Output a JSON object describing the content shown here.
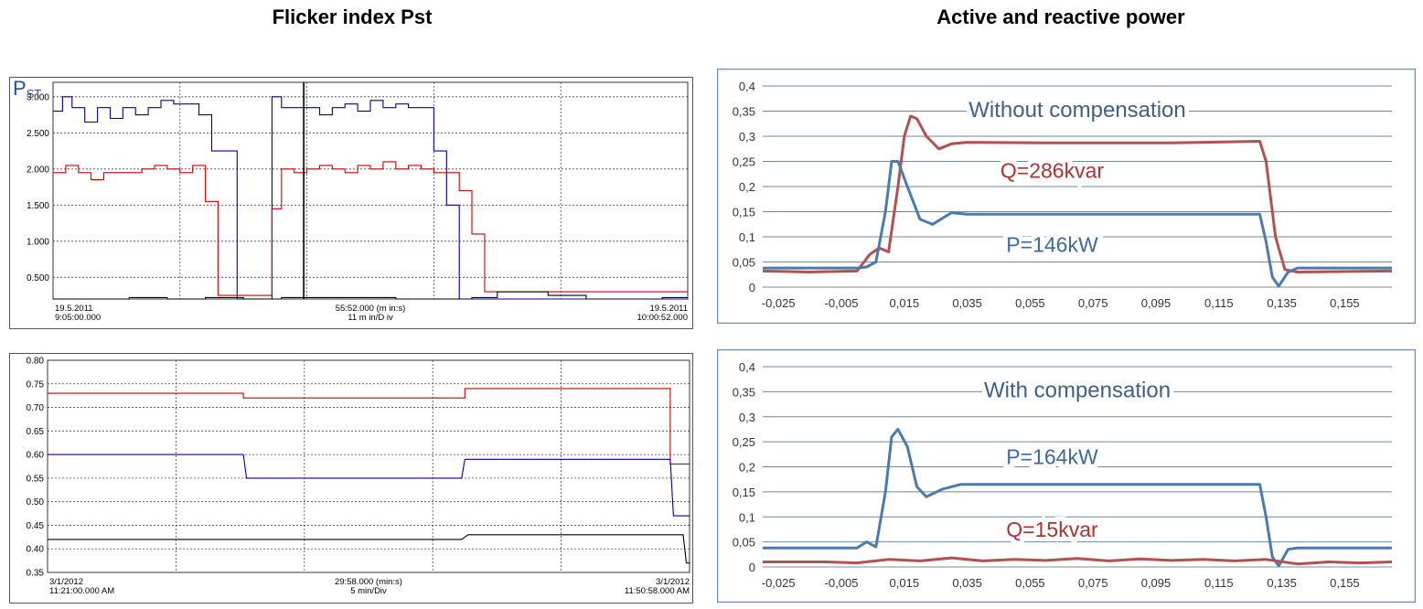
{
  "page": {
    "left_title": "Flicker index Pst",
    "right_title": "Active and reactive power"
  },
  "chart_data": [
    {
      "id": "pst-2011",
      "type": "line",
      "title": "",
      "ylabel": "P",
      "ylabel_sub": "ST",
      "ylim": [
        0.2,
        3.2
      ],
      "yticks": [
        0.5,
        1.0,
        1.5,
        2.0,
        2.5,
        3.0
      ],
      "ytick_labels": [
        "0.500",
        "1.000",
        "1.500",
        "2.000",
        "2.500",
        "3.000"
      ],
      "xlim": [
        0,
        100
      ],
      "x_labels": {
        "left": [
          "19.5.2011",
          "9:05:00.000"
        ],
        "center": [
          "55:52.000 (m in:s)",
          "11 m in/D iv"
        ],
        "right": [
          "19.5.2011",
          "10:00:52.000"
        ]
      },
      "grid": true,
      "colors": [
        "#0000aa",
        "#cc0000",
        "#000000"
      ],
      "series": [
        {
          "color": "#0000aa",
          "x": [
            0,
            1.5,
            1.5,
            3,
            3,
            5,
            5,
            7,
            7,
            9,
            9,
            11,
            11,
            13,
            13,
            15,
            15,
            17,
            17,
            19,
            19,
            21,
            21,
            23,
            23,
            25,
            25,
            27,
            27,
            29,
            29,
            31,
            31,
            33,
            33,
            34.5,
            34.5,
            36,
            36,
            38,
            38,
            40,
            40,
            42,
            42,
            44,
            44,
            46,
            46,
            48,
            48,
            50,
            50,
            52,
            52,
            54,
            54,
            56,
            56,
            58,
            58,
            60,
            60,
            62,
            62,
            64,
            64,
            66,
            66,
            68,
            68,
            70,
            70,
            72,
            72,
            74,
            74,
            76,
            76,
            78,
            78,
            80,
            80,
            82,
            82,
            84,
            84,
            86,
            86,
            88,
            88,
            90,
            90,
            92,
            92,
            94,
            94,
            96,
            96,
            98,
            98,
            100
          ],
          "y": [
            2.8,
            2.8,
            3.0,
            3.0,
            2.85,
            2.85,
            2.65,
            2.65,
            2.85,
            2.85,
            2.7,
            2.7,
            2.85,
            2.85,
            2.75,
            2.75,
            2.85,
            2.85,
            2.95,
            2.95,
            2.9,
            2.9,
            2.9,
            2.9,
            2.75,
            2.75,
            2.25,
            2.25,
            2.25,
            2.25,
            0.2,
            0.2,
            0.2,
            0.2,
            0.2,
            0.2,
            3.0,
            3.0,
            2.85,
            2.85,
            2.85,
            2.85,
            2.85,
            2.85,
            2.75,
            2.75,
            2.85,
            2.85,
            2.9,
            2.9,
            2.8,
            2.8,
            2.95,
            2.95,
            2.85,
            2.85,
            2.9,
            2.9,
            2.85,
            2.85,
            2.85,
            2.85,
            2.25,
            2.25,
            1.5,
            1.5,
            0.2,
            0.2,
            0.2,
            0.2,
            0.2,
            0.2,
            0.2,
            0.2,
            0.2,
            0.2,
            0.2,
            0.2,
            0.2,
            0.2,
            0.2,
            0.2,
            0.2,
            0.2,
            0.2,
            0.2,
            0.2,
            0.2,
            0.2,
            0.2,
            0.2,
            0.2,
            0.2,
            0.2,
            0.2,
            0.2,
            0.2,
            0.2,
            0.2,
            0.2,
            0.2,
            0.2
          ]
        },
        {
          "color": "#cc0000",
          "x": [
            0,
            2,
            2,
            4,
            4,
            6,
            6,
            8,
            8,
            10,
            10,
            12,
            12,
            14,
            14,
            16,
            16,
            18,
            18,
            20,
            20,
            22,
            22,
            24,
            24,
            26,
            26,
            28,
            28,
            30,
            30,
            34.5,
            34.5,
            36,
            36,
            38,
            38,
            40,
            40,
            42,
            42,
            44,
            44,
            46,
            46,
            48,
            48,
            50,
            50,
            52,
            52,
            54,
            54,
            56,
            56,
            58,
            58,
            60,
            60,
            62,
            62,
            64,
            64,
            66,
            66,
            68,
            68,
            70,
            70,
            72,
            72,
            74,
            74,
            76,
            76,
            78,
            78,
            80,
            80,
            82,
            82,
            84,
            84,
            86,
            86,
            88,
            88,
            90,
            90,
            92,
            92,
            94,
            94,
            96,
            96,
            98,
            98,
            100
          ],
          "y": [
            1.95,
            1.95,
            2.05,
            2.05,
            1.95,
            1.95,
            1.85,
            1.85,
            1.95,
            1.95,
            1.95,
            1.95,
            1.95,
            1.95,
            2.0,
            2.0,
            2.05,
            2.05,
            2.0,
            2.0,
            1.95,
            1.95,
            2.05,
            2.05,
            1.55,
            1.55,
            0.25,
            0.25,
            0.25,
            0.25,
            0.25,
            0.25,
            1.45,
            1.45,
            2.0,
            2.0,
            1.95,
            1.95,
            2.0,
            2.0,
            2.05,
            2.05,
            2.0,
            2.0,
            1.95,
            1.95,
            2.05,
            2.05,
            2.0,
            2.0,
            2.1,
            2.1,
            2.0,
            2.0,
            2.05,
            2.05,
            2.0,
            2.0,
            1.95,
            1.95,
            1.95,
            1.95,
            1.7,
            1.7,
            1.1,
            1.1,
            0.3,
            0.3,
            0.3,
            0.3,
            0.3,
            0.3,
            0.3,
            0.3,
            0.3,
            0.3,
            0.3,
            0.3,
            0.3,
            0.3,
            0.3,
            0.3,
            0.3,
            0.3,
            0.3,
            0.3,
            0.3,
            0.3,
            0.3,
            0.3,
            0.3,
            0.3,
            0.3,
            0.3,
            0.3,
            0.3,
            0.3,
            0.3
          ]
        },
        {
          "color": "#000000",
          "x": [
            0,
            12,
            12,
            18,
            18,
            24,
            24,
            30,
            30,
            36,
            36,
            54,
            54,
            66,
            66,
            70,
            70,
            78,
            78,
            84,
            84,
            96,
            96,
            100
          ],
          "y": [
            0.2,
            0.2,
            0.22,
            0.22,
            0.2,
            0.2,
            0.22,
            0.22,
            0.2,
            0.2,
            0.22,
            0.22,
            0.2,
            0.2,
            0.22,
            0.22,
            0.3,
            0.3,
            0.25,
            0.25,
            0.2,
            0.2,
            0.22,
            0.22
          ]
        }
      ]
    },
    {
      "id": "pst-2012",
      "type": "line",
      "title": "",
      "ylim": [
        0.35,
        0.8
      ],
      "yticks": [
        0.35,
        0.4,
        0.45,
        0.5,
        0.55,
        0.6,
        0.65,
        0.7,
        0.75,
        0.8
      ],
      "ytick_labels": [
        "0.35",
        "0.40",
        "0.45",
        "0.50",
        "0.55",
        "0.60",
        "0.65",
        "0.70",
        "0.75",
        "0.80"
      ],
      "xlim": [
        0,
        100
      ],
      "x_labels": {
        "left": [
          "3/1/2012",
          "11:21:00.000 AM"
        ],
        "center": [
          "29:58.000 (min:s)",
          "5 min/Div"
        ],
        "right": [
          "3/1/2012",
          "11:50:58.000 AM"
        ]
      },
      "grid": true,
      "colors": [
        "#cc0000",
        "#0000aa",
        "#000000"
      ],
      "series": [
        {
          "color": "#cc0000",
          "x": [
            0,
            30.5,
            30.5,
            65,
            65,
            97,
            97,
            100
          ],
          "y": [
            0.73,
            0.73,
            0.72,
            0.72,
            0.74,
            0.74,
            0.58,
            0.58
          ]
        },
        {
          "color": "#0000aa",
          "x": [
            0,
            30.5,
            31,
            64.5,
            65,
            97,
            97.5,
            100
          ],
          "y": [
            0.6,
            0.6,
            0.55,
            0.55,
            0.59,
            0.59,
            0.47,
            0.47
          ]
        },
        {
          "color": "#000000",
          "x": [
            0,
            64.5,
            65.5,
            99,
            99.5,
            100
          ],
          "y": [
            0.42,
            0.42,
            0.43,
            0.43,
            0.37,
            0.37
          ]
        }
      ]
    },
    {
      "id": "power-without",
      "type": "line",
      "title": "",
      "annotation": "Without compensation",
      "xlim": [
        -0.03,
        0.17
      ],
      "ylim": [
        0,
        0.4
      ],
      "xticks": [
        -0.025,
        -0.005,
        0.015,
        0.035,
        0.055,
        0.075,
        0.095,
        0.115,
        0.135,
        0.155
      ],
      "xtick_labels": [
        "-0,025",
        "-0,005",
        "0,015",
        "0,035",
        "0,055",
        "0,075",
        "0,095",
        "0,115",
        "0,135",
        "0,155"
      ],
      "yticks": [
        0,
        0.05,
        0.1,
        0.15,
        0.2,
        0.25,
        0.3,
        0.35,
        0.4
      ],
      "ytick_labels": [
        "0",
        "0,05",
        "0,1",
        "0,15",
        "0,2",
        "0,25",
        "0,3",
        "0,35",
        "0,4"
      ],
      "grid": true,
      "labels": [
        {
          "text": "Q=286kvar",
          "x": 0.062,
          "y": 0.232,
          "color": "#b03030"
        },
        {
          "text": "P=146kW",
          "x": 0.062,
          "y": 0.085,
          "color": "#3b6aa0"
        }
      ],
      "series": [
        {
          "color": "#b55050",
          "x": [
            -0.03,
            -0.015,
            0.0,
            0.004,
            0.007,
            0.01,
            0.013,
            0.015,
            0.017,
            0.019,
            0.022,
            0.026,
            0.03,
            0.035,
            0.06,
            0.1,
            0.128,
            0.13,
            0.133,
            0.136,
            0.14,
            0.17
          ],
          "y": [
            0.032,
            0.03,
            0.032,
            0.065,
            0.078,
            0.07,
            0.2,
            0.3,
            0.34,
            0.335,
            0.3,
            0.275,
            0.285,
            0.288,
            0.287,
            0.287,
            0.29,
            0.25,
            0.1,
            0.035,
            0.03,
            0.032
          ]
        },
        {
          "color": "#4a7ab0",
          "x": [
            -0.03,
            0.0,
            0.003,
            0.006,
            0.009,
            0.011,
            0.013,
            0.016,
            0.02,
            0.024,
            0.03,
            0.035,
            0.05,
            0.1,
            0.128,
            0.13,
            0.132,
            0.134,
            0.137,
            0.14,
            0.17
          ],
          "y": [
            0.038,
            0.038,
            0.04,
            0.05,
            0.15,
            0.25,
            0.25,
            0.2,
            0.135,
            0.125,
            0.148,
            0.145,
            0.145,
            0.145,
            0.145,
            0.09,
            0.02,
            0.002,
            0.03,
            0.038,
            0.038
          ]
        }
      ]
    },
    {
      "id": "power-with",
      "type": "line",
      "title": "",
      "annotation": "With compensation",
      "xlim": [
        -0.03,
        0.17
      ],
      "ylim": [
        0,
        0.4
      ],
      "xticks": [
        -0.025,
        -0.005,
        0.015,
        0.035,
        0.055,
        0.075,
        0.095,
        0.115,
        0.135,
        0.155
      ],
      "xtick_labels": [
        "-0,025",
        "-0,005",
        "0,015",
        "0,035",
        "0,055",
        "0,075",
        "0,095",
        "0,115",
        "0,135",
        "0,155"
      ],
      "yticks": [
        0,
        0.05,
        0.1,
        0.15,
        0.2,
        0.25,
        0.3,
        0.35,
        0.4
      ],
      "ytick_labels": [
        "0",
        "0,05",
        "0,1",
        "0,15",
        "0,2",
        "0,25",
        "0,3",
        "0,35",
        "0,4"
      ],
      "grid": true,
      "labels": [
        {
          "text": "P=164kW",
          "x": 0.062,
          "y": 0.22,
          "color": "#3b6aa0"
        },
        {
          "text": "Q=15kvar",
          "x": 0.062,
          "y": 0.075,
          "color": "#b03030"
        }
      ],
      "series": [
        {
          "color": "#4a7ab0",
          "x": [
            -0.03,
            0.0,
            0.003,
            0.006,
            0.009,
            0.011,
            0.013,
            0.016,
            0.019,
            0.022,
            0.027,
            0.033,
            0.05,
            0.1,
            0.128,
            0.13,
            0.132,
            0.134,
            0.137,
            0.14,
            0.17
          ],
          "y": [
            0.038,
            0.038,
            0.05,
            0.04,
            0.15,
            0.26,
            0.275,
            0.24,
            0.16,
            0.14,
            0.155,
            0.165,
            0.165,
            0.165,
            0.165,
            0.1,
            0.02,
            0.002,
            0.035,
            0.038,
            0.038
          ]
        },
        {
          "color": "#b55050",
          "x": [
            -0.03,
            -0.01,
            0.0,
            0.01,
            0.02,
            0.03,
            0.04,
            0.05,
            0.06,
            0.07,
            0.08,
            0.09,
            0.1,
            0.11,
            0.12,
            0.13,
            0.14,
            0.15,
            0.16,
            0.17
          ],
          "y": [
            0.01,
            0.01,
            0.008,
            0.015,
            0.012,
            0.018,
            0.012,
            0.015,
            0.013,
            0.017,
            0.012,
            0.016,
            0.013,
            0.015,
            0.012,
            0.015,
            0.006,
            0.01,
            0.008,
            0.01
          ]
        }
      ]
    }
  ]
}
